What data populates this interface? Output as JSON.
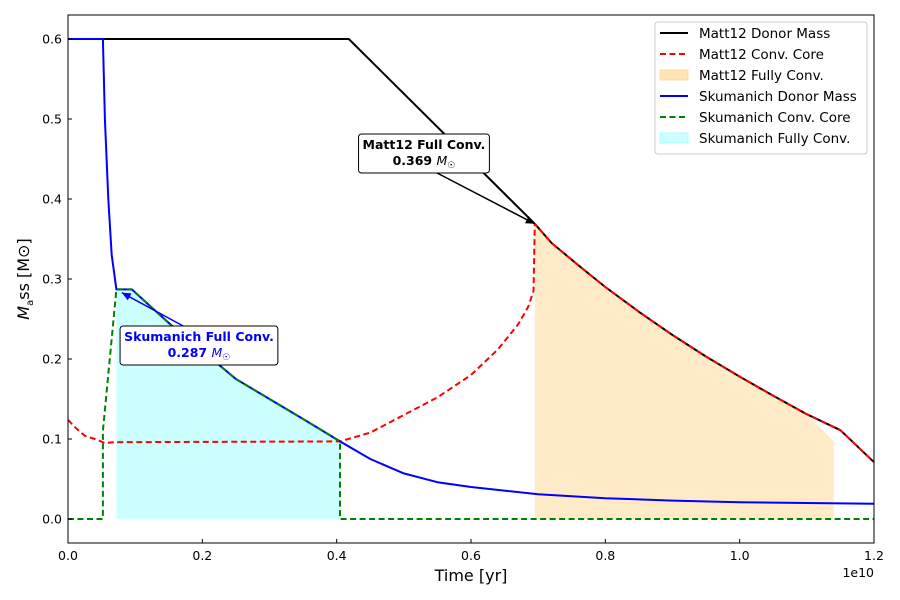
{
  "chart_data": {
    "type": "line",
    "xlabel": "Time [yr]",
    "ylabel": "Mass [M⊙]",
    "x_offset_label": "1e10",
    "x_scale": 10000000000.0,
    "xlim": [
      0,
      1.2
    ],
    "ylim": [
      -0.03,
      0.63
    ],
    "x_ticks": [
      0.0,
      0.2,
      0.4,
      0.6,
      0.8,
      1.0,
      1.2
    ],
    "x_tick_labels": [
      "0.0",
      "0.2",
      "0.4",
      "0.6",
      "0.8",
      "1.0",
      "1.2"
    ],
    "y_ticks": [
      0.0,
      0.1,
      0.2,
      0.3,
      0.4,
      0.5,
      0.6
    ],
    "y_tick_labels": [
      "0.0",
      "0.1",
      "0.2",
      "0.3",
      "0.4",
      "0.5",
      "0.6"
    ],
    "legend_position": "top-right",
    "series": [
      {
        "name": "Matt12 Donor Mass",
        "color": "#000000",
        "style": "solid",
        "x": [
          0.0,
          0.418,
          0.695,
          0.72,
          0.76,
          0.8,
          0.85,
          0.9,
          0.95,
          1.0,
          1.05,
          1.1,
          1.15,
          1.2
        ],
        "y": [
          0.6,
          0.6,
          0.369,
          0.345,
          0.317,
          0.29,
          0.259,
          0.23,
          0.203,
          0.178,
          0.154,
          0.131,
          0.111,
          0.071
        ]
      },
      {
        "name": "Matt12 Conv. Core",
        "color": "#ff0000",
        "style": "dashed",
        "x": [
          0.0,
          0.01,
          0.025,
          0.04,
          0.055,
          0.07,
          0.405,
          0.45,
          0.5,
          0.55,
          0.6,
          0.64,
          0.67,
          0.685,
          0.693,
          0.695,
          0.72,
          0.76,
          0.8,
          0.85,
          0.9,
          0.95,
          1.0,
          1.05,
          1.1,
          1.15,
          1.2
        ],
        "y": [
          0.124,
          0.115,
          0.104,
          0.1,
          0.095,
          0.096,
          0.097,
          0.108,
          0.13,
          0.152,
          0.18,
          0.212,
          0.243,
          0.265,
          0.285,
          0.369,
          0.345,
          0.317,
          0.29,
          0.259,
          0.23,
          0.203,
          0.178,
          0.154,
          0.131,
          0.111,
          0.071
        ]
      },
      {
        "name": "Skumanich Donor Mass",
        "color": "#0000ff",
        "style": "solid",
        "x": [
          0.0,
          0.052,
          0.055,
          0.06,
          0.065,
          0.072,
          0.095,
          0.15,
          0.25,
          0.35,
          0.405,
          0.45,
          0.5,
          0.55,
          0.6,
          0.7,
          0.8,
          0.9,
          1.0,
          1.1,
          1.2
        ],
        "y": [
          0.6,
          0.6,
          0.5,
          0.4,
          0.33,
          0.287,
          0.287,
          0.245,
          0.175,
          0.125,
          0.097,
          0.075,
          0.057,
          0.046,
          0.04,
          0.031,
          0.026,
          0.023,
          0.021,
          0.02,
          0.019
        ]
      },
      {
        "name": "Skumanich Conv. Core",
        "color": "#008000",
        "style": "dashed",
        "x": [
          0.0,
          0.052,
          0.052,
          0.072,
          0.095,
          0.15,
          0.25,
          0.35,
          0.405,
          0.405,
          1.2
        ],
        "y": [
          0.0,
          0.0,
          0.11,
          0.287,
          0.287,
          0.245,
          0.175,
          0.125,
          0.097,
          0.0,
          0.0
        ]
      }
    ],
    "fills": [
      {
        "name": "Matt12 Fully Conv.",
        "color": "#ffe4b5",
        "opacity": 0.75,
        "x": [
          0.695,
          0.72,
          0.76,
          0.8,
          0.85,
          0.9,
          0.95,
          1.0,
          1.05,
          1.1,
          1.14
        ],
        "y": [
          0.369,
          0.345,
          0.317,
          0.29,
          0.259,
          0.23,
          0.203,
          0.178,
          0.154,
          0.131,
          0.097
        ]
      },
      {
        "name": "Skumanich Fully Conv.",
        "color": "#00ffff",
        "opacity": 0.2,
        "x": [
          0.072,
          0.095,
          0.15,
          0.25,
          0.35,
          0.405
        ],
        "y": [
          0.287,
          0.287,
          0.245,
          0.175,
          0.125,
          0.097
        ]
      }
    ],
    "annotations": [
      {
        "line1": "Matt12 Full Conv.",
        "value": "0.369",
        "unit": "M",
        "unit_sub": "☉",
        "color": "#000000",
        "target": [
          0.695,
          0.369
        ],
        "text_at": [
          0.53,
          0.455
        ]
      },
      {
        "line1": "Skumanich Full Conv.",
        "value": "0.287",
        "unit": "M",
        "unit_sub": "☉",
        "color": "#0000ff",
        "target": [
          0.08,
          0.283
        ],
        "text_at": [
          0.195,
          0.215
        ]
      }
    ],
    "legend": [
      {
        "label": "Matt12 Donor Mass",
        "kind": "line",
        "color": "#000000",
        "dash": false
      },
      {
        "label": "Matt12 Conv. Core",
        "kind": "line",
        "color": "#ff0000",
        "dash": true
      },
      {
        "label": "Matt12 Fully Conv.",
        "kind": "patch",
        "color": "#ffe4b5",
        "edge": "#ffd898"
      },
      {
        "label": "Skumanich Donor Mass",
        "kind": "line",
        "color": "#0000ff",
        "dash": false
      },
      {
        "label": "Skumanich Conv. Core",
        "kind": "line",
        "color": "#008000",
        "dash": true
      },
      {
        "label": "Skumanich Fully Conv.",
        "kind": "patch",
        "color": "#ccffff",
        "edge": "#99ffff"
      }
    ]
  }
}
